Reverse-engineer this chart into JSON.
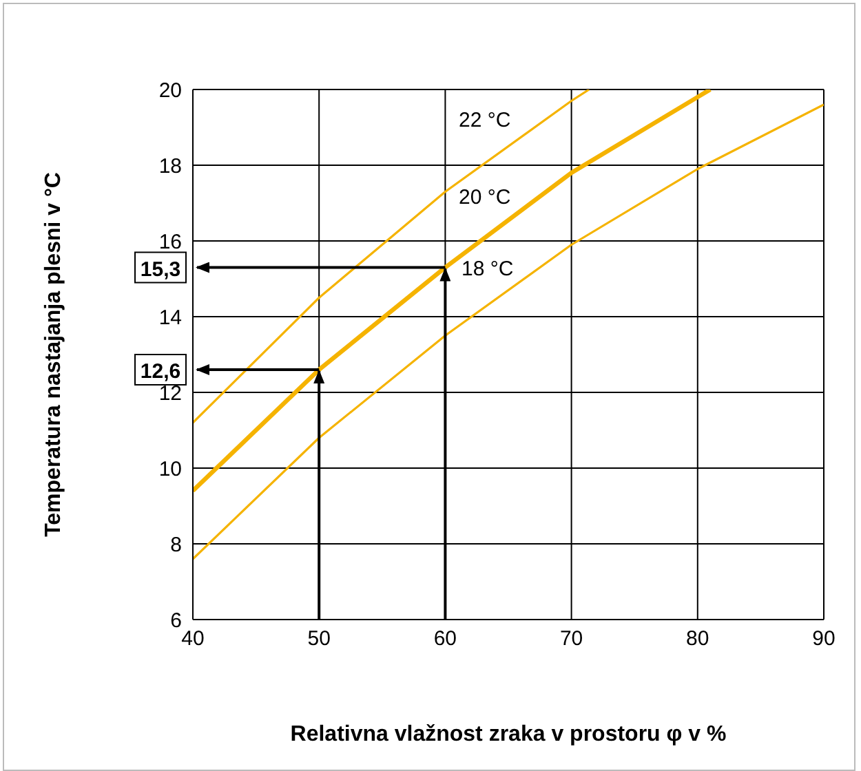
{
  "chart_data": {
    "type": "line",
    "xlabel": "Relativna vlažnost zraka v prostoru φ v %",
    "ylabel": "Temperatura nastajanja plesni v °C",
    "xlim": [
      40,
      90
    ],
    "xticks": [
      40,
      50,
      60,
      70,
      80,
      90
    ],
    "ylim": [
      6,
      20
    ],
    "yticks": [
      6,
      8,
      10,
      12,
      14,
      16,
      18,
      20
    ],
    "grid": true,
    "marker": "none",
    "line_style": "solid",
    "series": [
      {
        "name": "22 °C",
        "color": "#f5b300",
        "x": [
          40,
          50,
          60,
          70,
          71.4
        ],
        "values": [
          11.2,
          14.5,
          17.3,
          19.7,
          20
        ]
      },
      {
        "name": "20 °C",
        "color": "#f5b300",
        "x": [
          40,
          50,
          60,
          70,
          81
        ],
        "values": [
          9.4,
          12.6,
          15.3,
          17.8,
          20
        ]
      },
      {
        "name": "18 °C",
        "color": "#f5b300",
        "x": [
          40,
          50,
          60,
          70,
          80,
          90
        ],
        "values": [
          7.6,
          10.8,
          13.5,
          15.9,
          17.9,
          19.6
        ]
      }
    ],
    "annotations": [
      {
        "text": "15,3",
        "x": 60,
        "y": 15.3
      },
      {
        "text": "12,6",
        "x": 50,
        "y": 12.6
      }
    ]
  }
}
